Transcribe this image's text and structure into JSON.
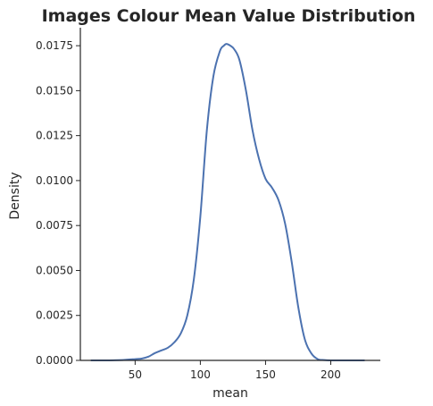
{
  "chart_data": {
    "type": "line",
    "title": "Images Colour Mean Value Distribution",
    "xlabel": "mean",
    "ylabel": "Density",
    "xlim": [
      8,
      238
    ],
    "ylim": [
      0,
      0.0185
    ],
    "x_ticks": [
      50,
      100,
      150,
      200
    ],
    "x_tick_labels": [
      "50",
      "100",
      "150",
      "200"
    ],
    "y_ticks": [
      0,
      0.0025,
      0.005,
      0.0075,
      0.01,
      0.0125,
      0.015,
      0.0175
    ],
    "y_tick_labels": [
      "0.0000",
      "0.0025",
      "0.0050",
      "0.0075",
      "0.0100",
      "0.0125",
      "0.0150",
      "0.0175"
    ],
    "grid": false,
    "series": [
      {
        "color": "#4c72b0",
        "x": [
          16,
          30,
          40,
          50,
          55,
          60,
          65,
          70,
          75,
          80,
          85,
          90,
          95,
          100,
          105,
          110,
          115,
          118,
          120,
          123,
          126,
          130,
          135,
          140,
          145,
          150,
          155,
          160,
          165,
          170,
          175,
          180,
          185,
          190,
          195,
          200,
          210,
          226
        ],
        "y": [
          0,
          0,
          2e-05,
          7e-05,
          0.0001,
          0.0002,
          0.0004,
          0.00055,
          0.0007,
          0.001,
          0.0015,
          0.0025,
          0.0045,
          0.008,
          0.0128,
          0.0158,
          0.0172,
          0.0175,
          0.0176,
          0.0175,
          0.0173,
          0.0167,
          0.015,
          0.0128,
          0.0112,
          0.0101,
          0.0096,
          0.0089,
          0.0076,
          0.0055,
          0.003,
          0.0012,
          0.0004,
          7e-05,
          2e-05,
          0,
          0,
          0
        ]
      }
    ]
  }
}
